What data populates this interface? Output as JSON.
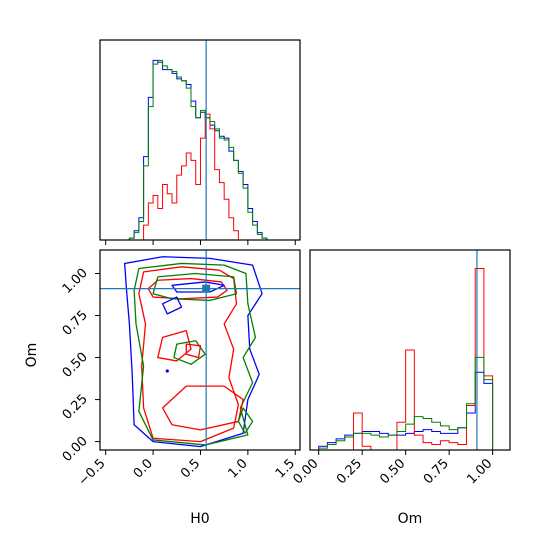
{
  "chart_data": {
    "type": "corner",
    "parameters": [
      "H0",
      "Om"
    ],
    "truths": {
      "H0": 0.56,
      "Om": 0.91
    },
    "truth_color": "#1f77b4",
    "series_colors": [
      "#0000ff",
      "#ff0000",
      "#008000"
    ],
    "panels": [
      {
        "id": "hist-h0",
        "type": "step-histogram",
        "parameter": "H0",
        "xlim": [
          -0.56,
          1.55
        ],
        "truth": 0.56,
        "series": [
          {
            "color": "#0000ff",
            "bins": [
              -0.25,
              -0.2,
              -0.15,
              -0.1,
              -0.05,
              0.0,
              0.05,
              0.1,
              0.15,
              0.2,
              0.25,
              0.3,
              0.35,
              0.4,
              0.45,
              0.5,
              0.55,
              0.6,
              0.65,
              0.7,
              0.75,
              0.8,
              0.85,
              0.9,
              0.95,
              1.0,
              1.05,
              1.1,
              1.15,
              1.2
            ],
            "values": [
              0.01,
              0.05,
              0.12,
              0.45,
              0.77,
              0.97,
              0.96,
              0.92,
              0.92,
              0.9,
              0.87,
              0.86,
              0.84,
              0.75,
              0.66,
              0.69,
              0.66,
              0.62,
              0.59,
              0.56,
              0.55,
              0.48,
              0.43,
              0.37,
              0.3,
              0.17,
              0.1,
              0.04,
              0.01
            ]
          },
          {
            "color": "#ff0000",
            "bins": [
              -0.1,
              -0.05,
              0.0,
              0.05,
              0.1,
              0.15,
              0.2,
              0.25,
              0.3,
              0.35,
              0.4,
              0.45,
              0.5,
              0.55,
              0.6,
              0.65,
              0.7,
              0.75,
              0.8,
              0.85,
              0.9
            ],
            "values": [
              0.08,
              0.2,
              0.24,
              0.17,
              0.3,
              0.25,
              0.2,
              0.35,
              0.4,
              0.47,
              0.43,
              0.3,
              0.55,
              0.68,
              0.6,
              0.38,
              0.31,
              0.22,
              0.12,
              0.05
            ]
          },
          {
            "color": "#008000",
            "bins": [
              -0.25,
              -0.2,
              -0.15,
              -0.1,
              -0.05,
              0.0,
              0.05,
              0.1,
              0.15,
              0.2,
              0.25,
              0.3,
              0.35,
              0.4,
              0.45,
              0.5,
              0.55,
              0.6,
              0.65,
              0.7,
              0.75,
              0.8,
              0.85,
              0.9,
              0.95,
              1.0,
              1.05,
              1.1,
              1.15,
              1.2
            ],
            "values": [
              0.01,
              0.04,
              0.1,
              0.4,
              0.72,
              0.95,
              0.97,
              0.94,
              0.92,
              0.91,
              0.88,
              0.86,
              0.82,
              0.72,
              0.66,
              0.7,
              0.66,
              0.64,
              0.6,
              0.55,
              0.54,
              0.5,
              0.43,
              0.36,
              0.28,
              0.15,
              0.08,
              0.03,
              0.01
            ]
          }
        ]
      },
      {
        "id": "contour-h0-om",
        "type": "contour",
        "x": "H0",
        "y": "Om",
        "xlim": [
          -0.56,
          1.55
        ],
        "ylim": [
          -0.05,
          1.14
        ],
        "xticks": [
          -0.5,
          0.0,
          0.5,
          1.0,
          1.5
        ],
        "xtick_labels": [
          "−0.5",
          "0.0",
          "0.5",
          "1.0",
          "1.5"
        ],
        "yticks": [
          0.0,
          0.25,
          0.5,
          0.75,
          1.0
        ],
        "ytick_labels": [
          "0.00",
          "0.25",
          "0.50",
          "0.75",
          "1.00"
        ],
        "xlabel": "H0",
        "ylabel": "Om",
        "truth": [
          0.56,
          0.91
        ],
        "contours": [
          {
            "color": "#0000ff",
            "points": [
              [
                -0.3,
                1.06
              ],
              [
                0.1,
                1.1
              ],
              [
                0.6,
                1.09
              ],
              [
                1.05,
                1.05
              ],
              [
                1.15,
                0.88
              ],
              [
                1.0,
                0.75
              ],
              [
                1.02,
                0.55
              ],
              [
                1.12,
                0.4
              ],
              [
                1.0,
                0.25
              ],
              [
                0.95,
                0.05
              ],
              [
                0.5,
                -0.03
              ],
              [
                0.0,
                0.0
              ],
              [
                -0.2,
                0.1
              ],
              [
                -0.22,
                0.4
              ],
              [
                -0.25,
                0.7
              ],
              [
                -0.28,
                0.9
              ]
            ]
          },
          {
            "color": "#ff0000",
            "points": [
              [
                -0.1,
                1.01
              ],
              [
                0.3,
                1.04
              ],
              [
                0.7,
                1.02
              ],
              [
                0.85,
                0.97
              ],
              [
                0.88,
                0.82
              ],
              [
                0.75,
                0.7
              ],
              [
                0.85,
                0.55
              ],
              [
                0.8,
                0.38
              ],
              [
                0.9,
                0.22
              ],
              [
                0.85,
                0.08
              ],
              [
                0.5,
                0.0
              ],
              [
                0.0,
                0.02
              ],
              [
                -0.1,
                0.2
              ],
              [
                -0.12,
                0.45
              ],
              [
                -0.08,
                0.7
              ],
              [
                -0.15,
                0.88
              ]
            ]
          },
          {
            "color": "#008000",
            "points": [
              [
                -0.15,
                1.03
              ],
              [
                0.3,
                1.06
              ],
              [
                0.75,
                1.05
              ],
              [
                0.98,
                1.0
              ],
              [
                1.0,
                0.82
              ],
              [
                1.08,
                0.62
              ],
              [
                0.95,
                0.5
              ],
              [
                1.05,
                0.35
              ],
              [
                0.92,
                0.2
              ],
              [
                1.0,
                0.04
              ],
              [
                0.55,
                -0.02
              ],
              [
                0.0,
                0.01
              ],
              [
                -0.15,
                0.18
              ],
              [
                -0.1,
                0.45
              ],
              [
                -0.18,
                0.7
              ],
              [
                -0.2,
                0.9
              ]
            ]
          },
          {
            "color": "#ff0000",
            "points": [
              [
                0.05,
                0.96
              ],
              [
                0.4,
                0.97
              ],
              [
                0.72,
                0.95
              ],
              [
                0.78,
                0.9
              ],
              [
                0.68,
                0.86
              ],
              [
                0.3,
                0.85
              ],
              [
                0.0,
                0.86
              ],
              [
                -0.05,
                0.91
              ]
            ]
          },
          {
            "color": "#0000ff",
            "points": [
              [
                0.2,
                0.93
              ],
              [
                0.55,
                0.95
              ],
              [
                0.75,
                0.93
              ],
              [
                0.6,
                0.89
              ],
              [
                0.25,
                0.89
              ]
            ]
          },
          {
            "color": "#008000",
            "points": [
              [
                0.05,
                0.98
              ],
              [
                0.45,
                1.0
              ],
              [
                0.85,
                0.98
              ],
              [
                0.88,
                0.88
              ],
              [
                0.6,
                0.84
              ],
              [
                0.2,
                0.85
              ],
              [
                0.0,
                0.88
              ]
            ]
          },
          {
            "color": "#ff0000",
            "points": [
              [
                0.1,
                0.62
              ],
              [
                0.35,
                0.66
              ],
              [
                0.4,
                0.55
              ],
              [
                0.25,
                0.48
              ],
              [
                0.05,
                0.5
              ]
            ]
          },
          {
            "color": "#008000",
            "points": [
              [
                0.25,
                0.58
              ],
              [
                0.45,
                0.6
              ],
              [
                0.55,
                0.52
              ],
              [
                0.4,
                0.46
              ],
              [
                0.22,
                0.5
              ]
            ]
          },
          {
            "color": "#ff0000",
            "points": [
              [
                0.35,
                0.33
              ],
              [
                0.75,
                0.33
              ],
              [
                0.95,
                0.25
              ],
              [
                0.9,
                0.12
              ],
              [
                0.5,
                0.07
              ],
              [
                0.2,
                0.1
              ],
              [
                0.1,
                0.2
              ]
            ]
          },
          {
            "color": "#ff0000",
            "points": [
              [
                0.35,
                0.58
              ],
              [
                0.5,
                0.57
              ],
              [
                0.48,
                0.5
              ],
              [
                0.35,
                0.52
              ]
            ]
          },
          {
            "color": "#008000",
            "points": [
              [
                0.95,
                0.2
              ],
              [
                1.05,
                0.12
              ],
              [
                0.97,
                0.05
              ],
              [
                0.9,
                0.12
              ]
            ]
          },
          {
            "color": "#0000ff",
            "points": [
              [
                0.1,
                0.82
              ],
              [
                0.25,
                0.86
              ],
              [
                0.3,
                0.8
              ],
              [
                0.15,
                0.76
              ]
            ]
          }
        ],
        "dots": [
          {
            "x": 0.15,
            "y": 0.42,
            "color": "#0000ff"
          }
        ]
      },
      {
        "id": "hist-om",
        "type": "step-histogram",
        "parameter": "Om",
        "xlim": [
          -0.05,
          1.1
        ],
        "xticks": [
          0.0,
          0.25,
          0.5,
          0.75,
          1.0
        ],
        "xtick_labels": [
          "0.00",
          "0.25",
          "0.50",
          "0.75",
          "1.00"
        ],
        "xlabel": "Om",
        "truth": 0.91,
        "series": [
          {
            "color": "#0000ff",
            "bins": [
              0.0,
              0.05,
              0.1,
              0.15,
              0.2,
              0.25,
              0.3,
              0.35,
              0.4,
              0.45,
              0.5,
              0.55,
              0.6,
              0.65,
              0.7,
              0.75,
              0.8,
              0.85,
              0.9,
              0.95,
              1.0
            ],
            "values": [
              0.02,
              0.04,
              0.06,
              0.08,
              0.09,
              0.1,
              0.1,
              0.09,
              0.08,
              0.08,
              0.09,
              0.1,
              0.11,
              0.1,
              0.09,
              0.09,
              0.12,
              0.2,
              0.42,
              0.36
            ]
          },
          {
            "color": "#ff0000",
            "bins": [
              0.0,
              0.05,
              0.1,
              0.15,
              0.2,
              0.25,
              0.3,
              0.35,
              0.4,
              0.45,
              0.5,
              0.55,
              0.6,
              0.65,
              0.7,
              0.75,
              0.8,
              0.85,
              0.9,
              0.95,
              1.0
            ],
            "values": [
              0.0,
              0.0,
              0.0,
              0.0,
              0.2,
              0.02,
              0.0,
              0.0,
              0.0,
              0.15,
              0.54,
              0.08,
              0.04,
              0.03,
              0.05,
              0.04,
              0.03,
              0.24,
              0.98,
              0.4
            ]
          },
          {
            "color": "#008000",
            "bins": [
              0.0,
              0.05,
              0.1,
              0.15,
              0.2,
              0.25,
              0.3,
              0.35,
              0.4,
              0.45,
              0.5,
              0.55,
              0.6,
              0.65,
              0.7,
              0.75,
              0.8,
              0.85,
              0.9,
              0.95,
              1.0
            ],
            "values": [
              0.01,
              0.03,
              0.05,
              0.07,
              0.09,
              0.09,
              0.08,
              0.07,
              0.08,
              0.1,
              0.14,
              0.18,
              0.17,
              0.15,
              0.13,
              0.11,
              0.12,
              0.25,
              0.5,
              0.38
            ]
          }
        ]
      }
    ]
  }
}
